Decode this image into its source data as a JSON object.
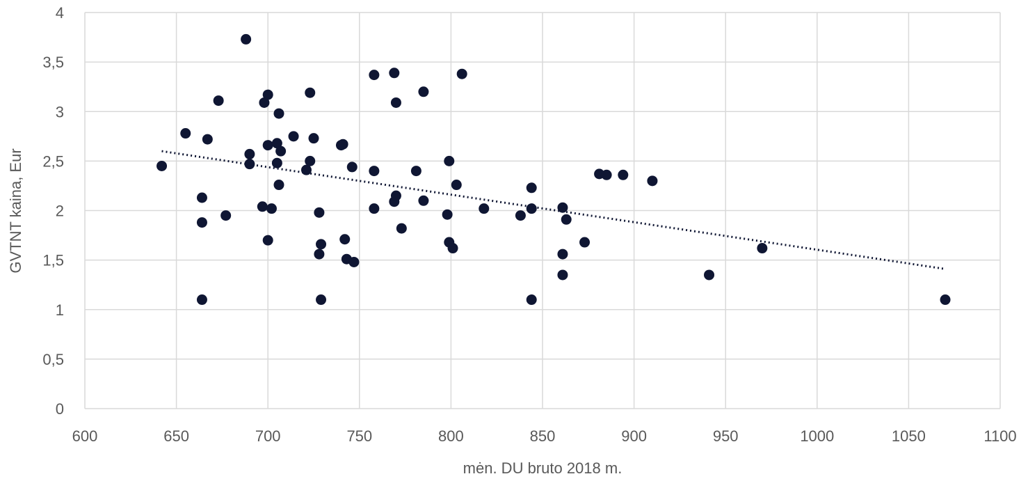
{
  "chart_data": {
    "type": "scatter",
    "title": "",
    "xlabel": "mėn. DU bruto 2018 m.",
    "ylabel": "GVTNT kaina, Eur",
    "xlim": [
      600,
      1100
    ],
    "ylim": [
      0,
      4
    ],
    "x_ticks": [
      600,
      650,
      700,
      750,
      800,
      850,
      900,
      950,
      1000,
      1050,
      1100
    ],
    "y_ticks": [
      0,
      0.5,
      1,
      1.5,
      2,
      2.5,
      3,
      3.5,
      4
    ],
    "x_tick_labels": [
      "600",
      "650",
      "700",
      "750",
      "800",
      "850",
      "900",
      "950",
      "1000",
      "1050",
      "1100"
    ],
    "y_tick_labels": [
      "0",
      "0,5",
      "1",
      "1,5",
      "2",
      "2,5",
      "3",
      "3,5",
      "4"
    ],
    "grid": true,
    "marker_color": "#0f1633",
    "trendline": {
      "type": "linear",
      "style": "dotted",
      "from": [
        642,
        2.6
      ],
      "to": [
        1070,
        1.41
      ]
    },
    "points": [
      [
        642,
        2.45
      ],
      [
        655,
        2.78
      ],
      [
        664,
        2.13
      ],
      [
        664,
        1.88
      ],
      [
        664,
        1.1
      ],
      [
        667,
        2.72
      ],
      [
        673,
        3.11
      ],
      [
        677,
        1.95
      ],
      [
        688,
        3.73
      ],
      [
        690,
        2.57
      ],
      [
        690,
        2.47
      ],
      [
        697,
        2.04
      ],
      [
        698,
        3.09
      ],
      [
        700,
        2.66
      ],
      [
        700,
        1.7
      ],
      [
        700,
        3.17
      ],
      [
        702,
        2.02
      ],
      [
        705,
        2.68
      ],
      [
        705,
        2.48
      ],
      [
        706,
        2.98
      ],
      [
        706,
        2.26
      ],
      [
        707,
        2.6
      ],
      [
        714,
        2.75
      ],
      [
        721,
        2.41
      ],
      [
        723,
        3.19
      ],
      [
        723,
        2.5
      ],
      [
        725,
        2.73
      ],
      [
        728,
        1.98
      ],
      [
        728,
        1.56
      ],
      [
        729,
        1.66
      ],
      [
        729,
        1.1
      ],
      [
        740,
        2.66
      ],
      [
        741,
        2.67
      ],
      [
        742,
        1.71
      ],
      [
        743,
        1.51
      ],
      [
        746,
        2.44
      ],
      [
        747,
        1.48
      ],
      [
        758,
        3.37
      ],
      [
        758,
        2.4
      ],
      [
        758,
        2.02
      ],
      [
        769,
        3.39
      ],
      [
        769,
        2.09
      ],
      [
        770,
        3.09
      ],
      [
        770,
        2.15
      ],
      [
        773,
        1.82
      ],
      [
        781,
        2.4
      ],
      [
        785,
        3.2
      ],
      [
        785,
        2.1
      ],
      [
        798,
        1.96
      ],
      [
        799,
        2.5
      ],
      [
        799,
        1.68
      ],
      [
        801,
        1.62
      ],
      [
        803,
        2.26
      ],
      [
        806,
        3.38
      ],
      [
        818,
        2.02
      ],
      [
        838,
        1.95
      ],
      [
        844,
        2.23
      ],
      [
        844,
        2.02
      ],
      [
        844,
        1.1
      ],
      [
        861,
        2.03
      ],
      [
        861,
        1.56
      ],
      [
        861,
        1.35
      ],
      [
        863,
        1.91
      ],
      [
        873,
        1.68
      ],
      [
        881,
        2.37
      ],
      [
        885,
        2.36
      ],
      [
        894,
        2.36
      ],
      [
        910,
        2.3
      ],
      [
        941,
        1.35
      ],
      [
        970,
        1.62
      ],
      [
        1070,
        1.1
      ]
    ]
  }
}
